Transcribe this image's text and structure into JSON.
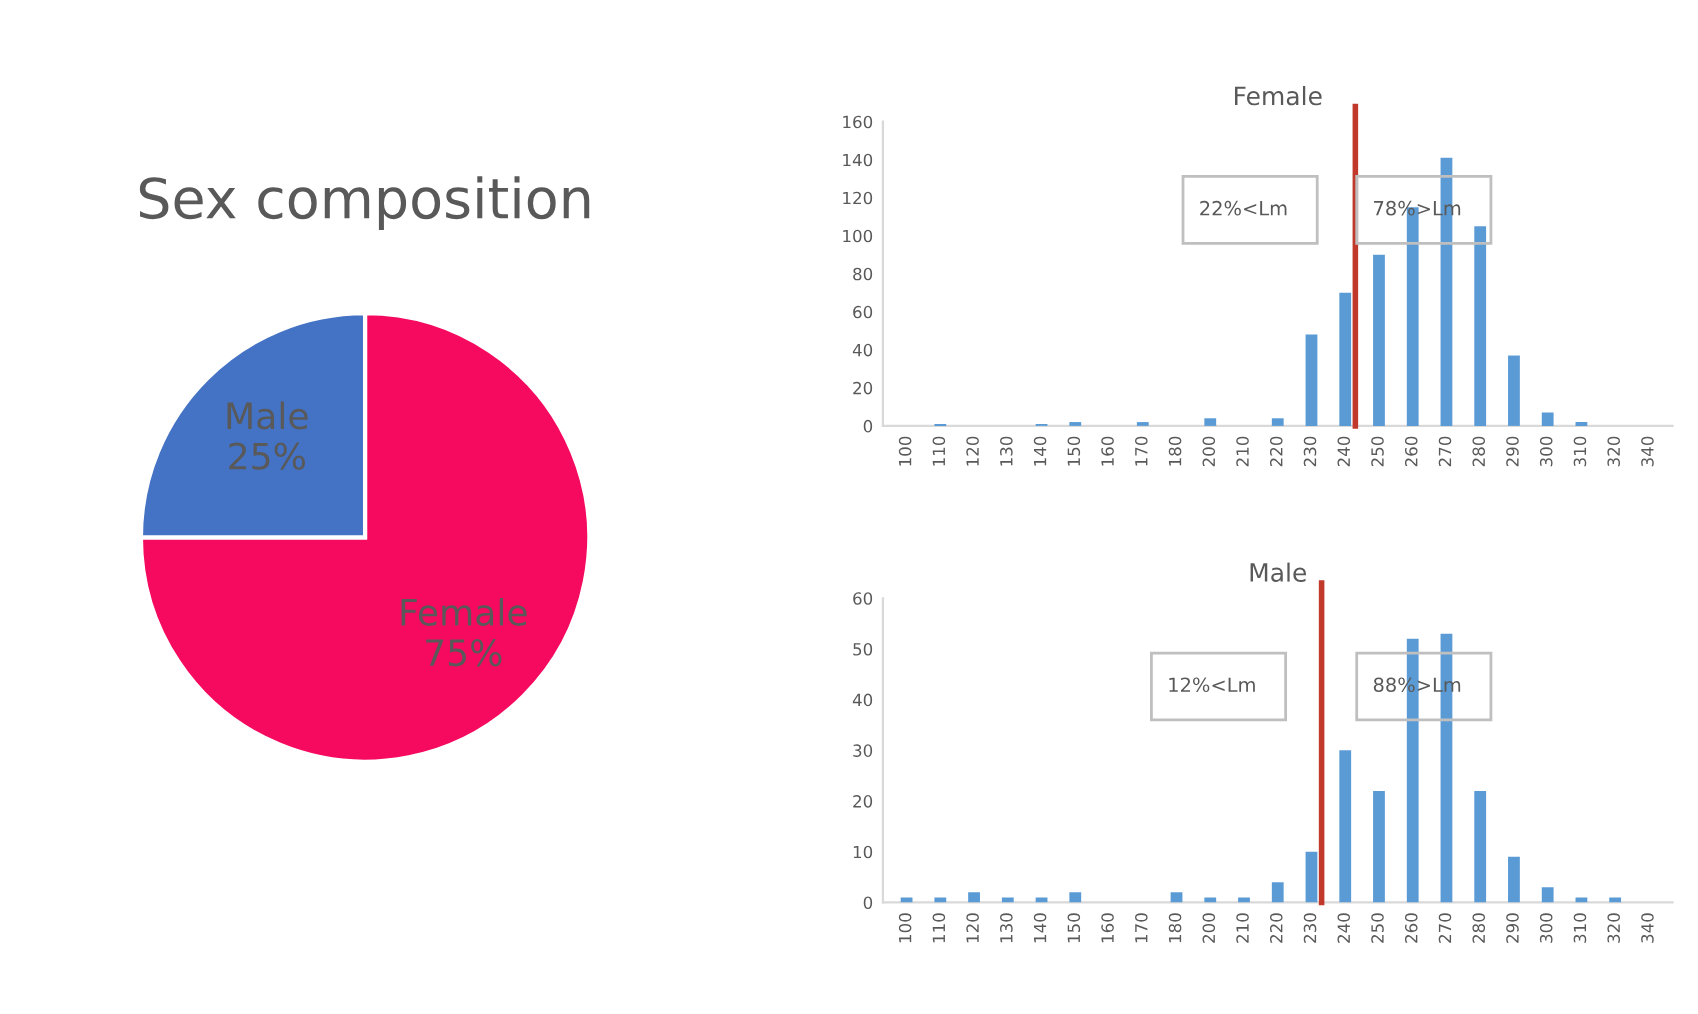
{
  "chart_data": [
    {
      "type": "pie",
      "title": "Sex composition",
      "categories": [
        "Female",
        "Male"
      ],
      "values": [
        75,
        25
      ],
      "colors": [
        "#f50a5f",
        "#4472c4"
      ],
      "value_labels": [
        "75%",
        "25%"
      ]
    },
    {
      "type": "bar",
      "title": "Female",
      "categories": [
        "100",
        "110",
        "120",
        "130",
        "140",
        "150",
        "160",
        "170",
        "180",
        "200",
        "210",
        "220",
        "230",
        "240",
        "250",
        "260",
        "270",
        "280",
        "290",
        "300",
        "310",
        "320",
        "340"
      ],
      "series": [
        {
          "color": "#5b9bd5",
          "values": [
            0,
            1,
            0,
            0,
            1,
            2,
            0,
            2,
            0,
            4,
            0,
            4,
            48,
            70,
            90,
            115,
            141,
            105,
            37,
            7,
            2,
            0,
            0
          ]
        }
      ],
      "ylim": [
        0,
        160
      ],
      "yticks": [
        0,
        20,
        40,
        60,
        80,
        100,
        120,
        140,
        160
      ],
      "grid": false,
      "legend": false,
      "ref_lines": [
        {
          "axis": "x",
          "value": "240",
          "color": "#c0392b"
        }
      ],
      "annotations": [
        "22%<Lm",
        "78%>Lm"
      ]
    },
    {
      "type": "bar",
      "title": "Male",
      "categories": [
        "100",
        "110",
        "120",
        "130",
        "140",
        "150",
        "160",
        "170",
        "180",
        "200",
        "210",
        "220",
        "230",
        "240",
        "250",
        "260",
        "270",
        "280",
        "290",
        "300",
        "310",
        "320",
        "340"
      ],
      "series": [
        {
          "color": "#5b9bd5",
          "values": [
            1,
            1,
            2,
            1,
            1,
            2,
            0,
            0,
            2,
            1,
            1,
            4,
            10,
            30,
            22,
            52,
            53,
            22,
            9,
            3,
            1,
            1,
            0
          ]
        }
      ],
      "ylim": [
        0,
        60
      ],
      "yticks": [
        0,
        10,
        20,
        30,
        40,
        50,
        60
      ],
      "grid": false,
      "legend": false,
      "ref_lines": [
        {
          "axis": "x",
          "value": "230",
          "color": "#c0392b"
        }
      ],
      "annotations": [
        "12%<Lm",
        "88%>Lm"
      ]
    }
  ]
}
